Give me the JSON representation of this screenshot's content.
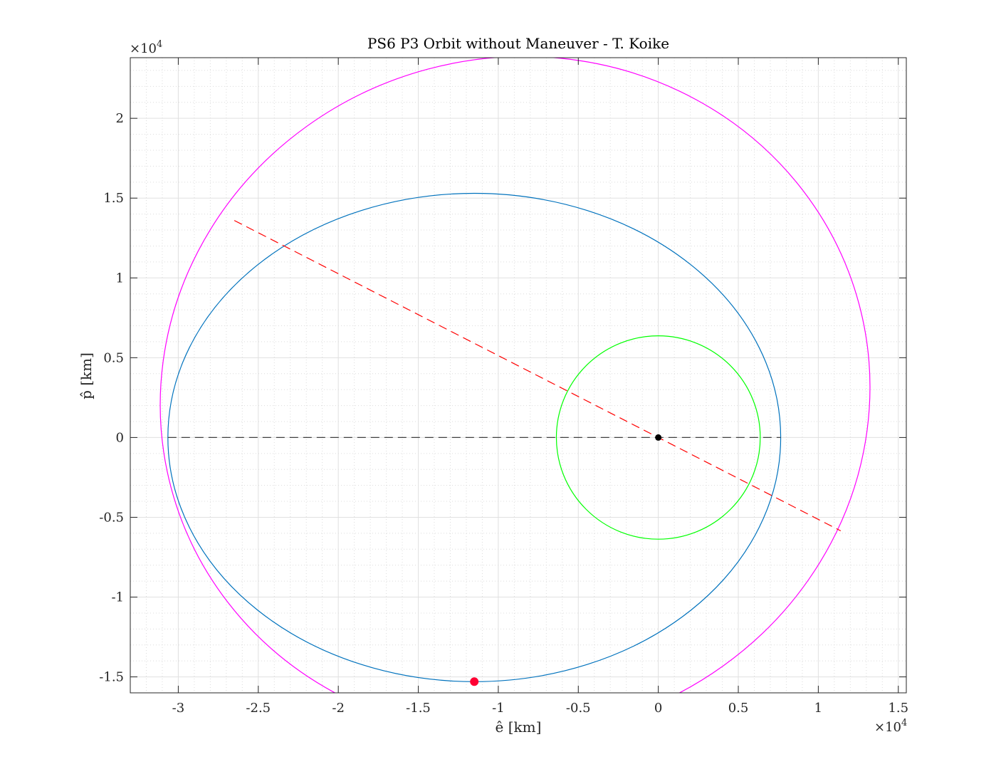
{
  "chart_data": {
    "type": "line",
    "title": "PS6 P3 Orbit without Maneuver - T. Koike",
    "xlabel": "ê [km]",
    "ylabel": "p̂ [km]",
    "x_multiplier": {
      "base": "×10",
      "exponent": "4"
    },
    "y_multiplier": {
      "base": "×10",
      "exponent": "4"
    },
    "xlim": [
      -33000,
      15500
    ],
    "ylim": [
      -16000,
      23800
    ],
    "xticks": [
      -30000,
      -25000,
      -20000,
      -15000,
      -10000,
      -5000,
      0,
      5000,
      10000,
      15000
    ],
    "xtick_labels": [
      "-3",
      "-2.5",
      "-2",
      "-1.5",
      "-1",
      "-0.5",
      "0",
      "0.5",
      "1",
      "1.5"
    ],
    "yticks": [
      -15000,
      -10000,
      -5000,
      0,
      5000,
      10000,
      15000,
      20000
    ],
    "ytick_labels": [
      "-1.5",
      "-1",
      "-0.5",
      "0",
      "0.5",
      "1",
      "1.5",
      "2"
    ],
    "grid": true,
    "minor_grid": true,
    "series": [
      {
        "kind": "ellipse",
        "color": "#0072BD",
        "cx": -11500,
        "cy": 0,
        "rx": 19150,
        "ry": 15300
      },
      {
        "kind": "ellipse",
        "color": "#FF00FF",
        "cx": -8950,
        "cy": 2600,
        "rx": 22250,
        "ry": 21200,
        "rotation_deg": -15
      },
      {
        "kind": "ellipse",
        "color": "#00FF00",
        "cx": 0,
        "cy": 0,
        "rx": 6371,
        "ry": 6371
      },
      {
        "kind": "dashed-line",
        "color": "#FF0000",
        "x": [
          -26500,
          11400
        ],
        "y": [
          13600,
          -5850
        ]
      },
      {
        "kind": "dashed-line",
        "color": "#404040",
        "x": [
          -30650,
          7650
        ],
        "y": [
          0,
          0
        ]
      },
      {
        "kind": "marker",
        "color": "#000000",
        "x": 0,
        "y": 0
      },
      {
        "kind": "marker",
        "color": "#FF0033",
        "x": -11500,
        "y": -15300
      }
    ]
  }
}
